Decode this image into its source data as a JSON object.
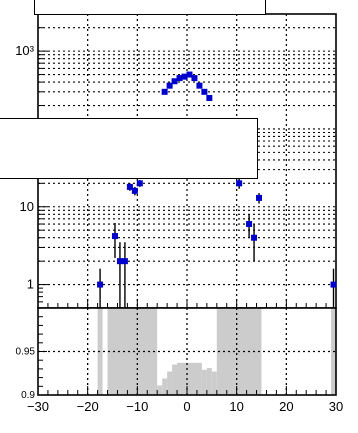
{
  "chart_data": [
    {
      "type": "scatter",
      "panel": "top",
      "y_scale": "log",
      "xlim": [
        -30,
        30
      ],
      "ylim": [
        0.5,
        3000
      ],
      "grid": true,
      "legend": "none",
      "x_tick_labels": [],
      "y_tick_labels": [
        {
          "value": 1,
          "label": "1"
        },
        {
          "value": 10,
          "label": "10"
        },
        {
          "value": 1000,
          "label": "10³"
        }
      ],
      "marker_color": "#0000cc",
      "series": [
        {
          "points": [
            {
              "x": -17.5,
              "y": 1,
              "yerr": [
                0.6,
                0.6
              ]
            },
            {
              "x": -14.5,
              "y": 4.2,
              "yerr": [
                2,
                2
              ]
            },
            {
              "x": -13.5,
              "y": 2,
              "yerr": [
                1.5,
                1.5
              ]
            },
            {
              "x": -12.5,
              "y": 2,
              "yerr": [
                1.5,
                1.5
              ]
            },
            {
              "x": -11.5,
              "y": 18,
              "yerr": [
                2,
                2
              ]
            },
            {
              "x": -10.5,
              "y": 16,
              "yerr": [
                2,
                2
              ]
            },
            {
              "x": -9.5,
              "y": 20,
              "yerr": [
                2,
                2
              ]
            },
            {
              "x": -4.5,
              "y": 300,
              "yerr": [
                10,
                10
              ]
            },
            {
              "x": -3.5,
              "y": 360,
              "yerr": [
                10,
                10
              ]
            },
            {
              "x": -2.5,
              "y": 410,
              "yerr": [
                10,
                10
              ]
            },
            {
              "x": -1.5,
              "y": 450,
              "yerr": [
                12,
                12
              ]
            },
            {
              "x": -0.5,
              "y": 470,
              "yerr": [
                12,
                12
              ]
            },
            {
              "x": 0.5,
              "y": 500,
              "yerr": [
                12,
                12
              ]
            },
            {
              "x": 1.5,
              "y": 450,
              "yerr": [
                12,
                12
              ]
            },
            {
              "x": 2.5,
              "y": 360,
              "yerr": [
                10,
                10
              ]
            },
            {
              "x": 3.5,
              "y": 300,
              "yerr": [
                10,
                10
              ]
            },
            {
              "x": 4.5,
              "y": 250,
              "yerr": [
                10,
                10
              ]
            },
            {
              "x": 10.5,
              "y": 20,
              "yerr": [
                3,
                3
              ]
            },
            {
              "x": 12.5,
              "y": 6,
              "yerr": [
                2,
                2
              ]
            },
            {
              "x": 13.5,
              "y": 4,
              "yerr": [
                2,
                2
              ]
            },
            {
              "x": 14.5,
              "y": 13,
              "yerr": [
                2,
                2
              ]
            },
            {
              "x": 29.5,
              "y": 1,
              "yerr": [
                0.6,
                0.6
              ]
            }
          ]
        }
      ]
    },
    {
      "type": "bar",
      "panel": "bottom",
      "xlim": [
        -30,
        30
      ],
      "ylim": [
        0.9,
        1.0
      ],
      "grid": true,
      "legend": "none",
      "bar_color": "#cccccc",
      "x_tick_labels": [
        "−30",
        "−20",
        "−10",
        "0",
        "10",
        "20",
        "30"
      ],
      "x_ticks": [
        -30,
        -20,
        -10,
        0,
        10,
        20,
        30
      ],
      "y_tick_labels": [
        {
          "value": 0.9,
          "label": "0.9"
        },
        {
          "value": 0.95,
          "label": "0.95"
        }
      ],
      "bars": [
        {
          "x0": -18,
          "x1": -17,
          "y": 1.0
        },
        {
          "x0": -16,
          "x1": -6,
          "y": 1.0
        },
        {
          "x0": -6,
          "x1": -5,
          "y": 0.911
        },
        {
          "x0": -5,
          "x1": -4,
          "y": 0.919
        },
        {
          "x0": -4,
          "x1": -3,
          "y": 0.927
        },
        {
          "x0": -3,
          "x1": -2,
          "y": 0.935
        },
        {
          "x0": -2,
          "x1": 0,
          "y": 0.937
        },
        {
          "x0": 0,
          "x1": 3,
          "y": 0.937
        },
        {
          "x0": 3,
          "x1": 4,
          "y": 0.929
        },
        {
          "x0": 4,
          "x1": 5,
          "y": 0.931
        },
        {
          "x0": 5,
          "x1": 6,
          "y": 0.927
        },
        {
          "x0": 6,
          "x1": 15,
          "y": 1.0
        },
        {
          "x0": 29,
          "x1": 30,
          "y": 1.0
        }
      ]
    }
  ]
}
